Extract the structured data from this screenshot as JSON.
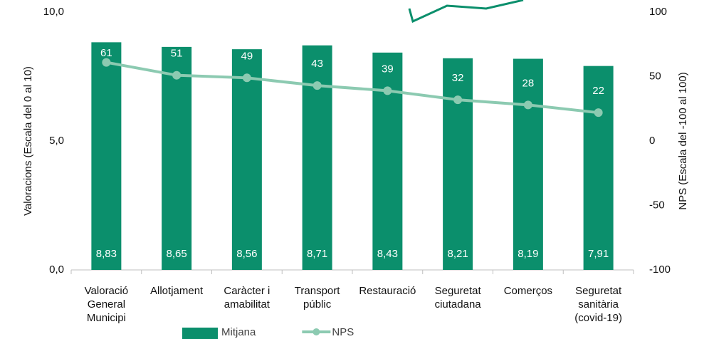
{
  "chart_data": {
    "type": "bar",
    "categories": [
      [
        "Valoració",
        "General",
        "Municipi"
      ],
      [
        "Allotjament"
      ],
      [
        "Caràcter i",
        "amabilitat"
      ],
      [
        "Transport",
        "públic"
      ],
      [
        "Restauració"
      ],
      [
        "Seguretat",
        "ciutadana"
      ],
      [
        "Comerços"
      ],
      [
        "Seguretat",
        "sanitària",
        "(covid-19)"
      ]
    ],
    "series": [
      {
        "name": "Mitjana",
        "type": "bar",
        "color": "#0b8f6c",
        "values": [
          8.83,
          8.65,
          8.56,
          8.71,
          8.43,
          8.21,
          8.19,
          7.91
        ],
        "value_labels": [
          "8,83",
          "8,65",
          "8,56",
          "8,71",
          "8,43",
          "8,21",
          "8,19",
          "7,91"
        ]
      },
      {
        "name": "NPS",
        "type": "line",
        "axis": "y2",
        "color": "#8ccab1",
        "values": [
          61,
          51,
          49,
          43,
          39,
          32,
          28,
          22
        ]
      }
    ],
    "ylabel": "Valoracions (Escala  del 0 al 10)",
    "y2label": "NPS (Escala  del -100 al 100)",
    "ylim": [
      0,
      10
    ],
    "yticks": [
      {
        "value": 0,
        "label": "0,0"
      },
      {
        "value": 5,
        "label": "5,0"
      },
      {
        "value": 10,
        "label": "10,0"
      }
    ],
    "y2lim": [
      -100,
      100
    ],
    "y2ticks": [
      -100,
      -50,
      0,
      50,
      100
    ],
    "legend": "bottom"
  }
}
